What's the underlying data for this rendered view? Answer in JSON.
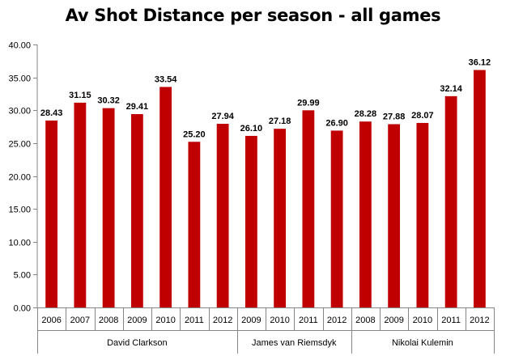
{
  "chart_data": {
    "type": "bar",
    "title": "Av Shot Distance per season - all games",
    "ylim": [
      0,
      40
    ],
    "yticks": [
      "0.00",
      "5.00",
      "10.00",
      "15.00",
      "20.00",
      "25.00",
      "30.00",
      "35.00",
      "40.00"
    ],
    "grid": false,
    "legend": "none",
    "bar_color": "#c00000",
    "groups": [
      {
        "name": "David Clarkson",
        "categories": [
          "2006",
          "2007",
          "2008",
          "2009",
          "2010",
          "2011",
          "2012"
        ],
        "values": [
          28.43,
          31.15,
          30.32,
          29.41,
          33.54,
          25.2,
          27.94
        ],
        "value_labels": [
          "28.43",
          "31.15",
          "30.32",
          "29.41",
          "33.54",
          "25.20",
          "27.94"
        ]
      },
      {
        "name": "James van Riemsdyk",
        "categories": [
          "2009",
          "2010",
          "2011",
          "2012"
        ],
        "values": [
          26.1,
          27.18,
          29.99,
          26.9
        ],
        "value_labels": [
          "26.10",
          "27.18",
          "29.99",
          "26.90"
        ]
      },
      {
        "name": "Nikolai Kulemin",
        "categories": [
          "2008",
          "2009",
          "2010",
          "2011",
          "2012"
        ],
        "values": [
          28.28,
          27.88,
          28.07,
          32.14,
          36.12
        ],
        "value_labels": [
          "28.28",
          "27.88",
          "28.07",
          "32.14",
          "36.12"
        ]
      }
    ]
  }
}
